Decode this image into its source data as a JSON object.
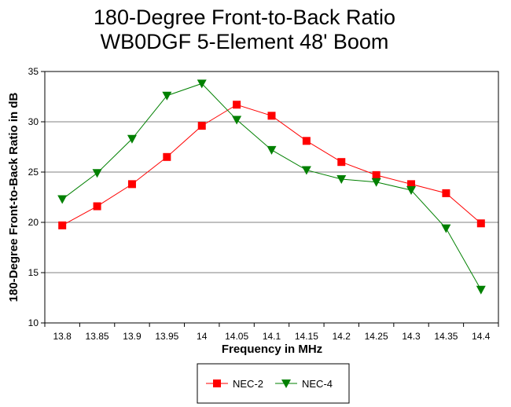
{
  "chart_data": {
    "type": "line",
    "title": "180-Degree Front-to-Back Ratio",
    "subtitle": "WB0DGF 5-Element 48' Boom",
    "xlabel": "Frequency in MHz",
    "ylabel": "180-Degree Front-to-Back Ratio in dB",
    "x": [
      "13.8",
      "13.85",
      "13.9",
      "13.95",
      "14",
      "14.05",
      "14.1",
      "14.15",
      "14.2",
      "14.25",
      "14.3",
      "14.35",
      "14.4"
    ],
    "ylim": [
      10,
      35
    ],
    "yticks": [
      "10",
      "15",
      "20",
      "25",
      "30",
      "35"
    ],
    "grid": true,
    "legend_position": "bottom",
    "series": [
      {
        "name": "NEC-2",
        "color": "#ff0000",
        "marker": "square",
        "values": [
          19.7,
          21.6,
          23.8,
          26.5,
          29.6,
          31.7,
          30.6,
          28.1,
          26.0,
          24.7,
          23.8,
          22.9,
          19.9
        ]
      },
      {
        "name": "NEC-4",
        "color": "#008000",
        "marker": "triangle-down",
        "values": [
          22.3,
          24.9,
          28.3,
          32.6,
          33.8,
          30.2,
          27.2,
          25.2,
          24.3,
          24.0,
          23.2,
          19.4,
          13.3
        ]
      }
    ]
  }
}
